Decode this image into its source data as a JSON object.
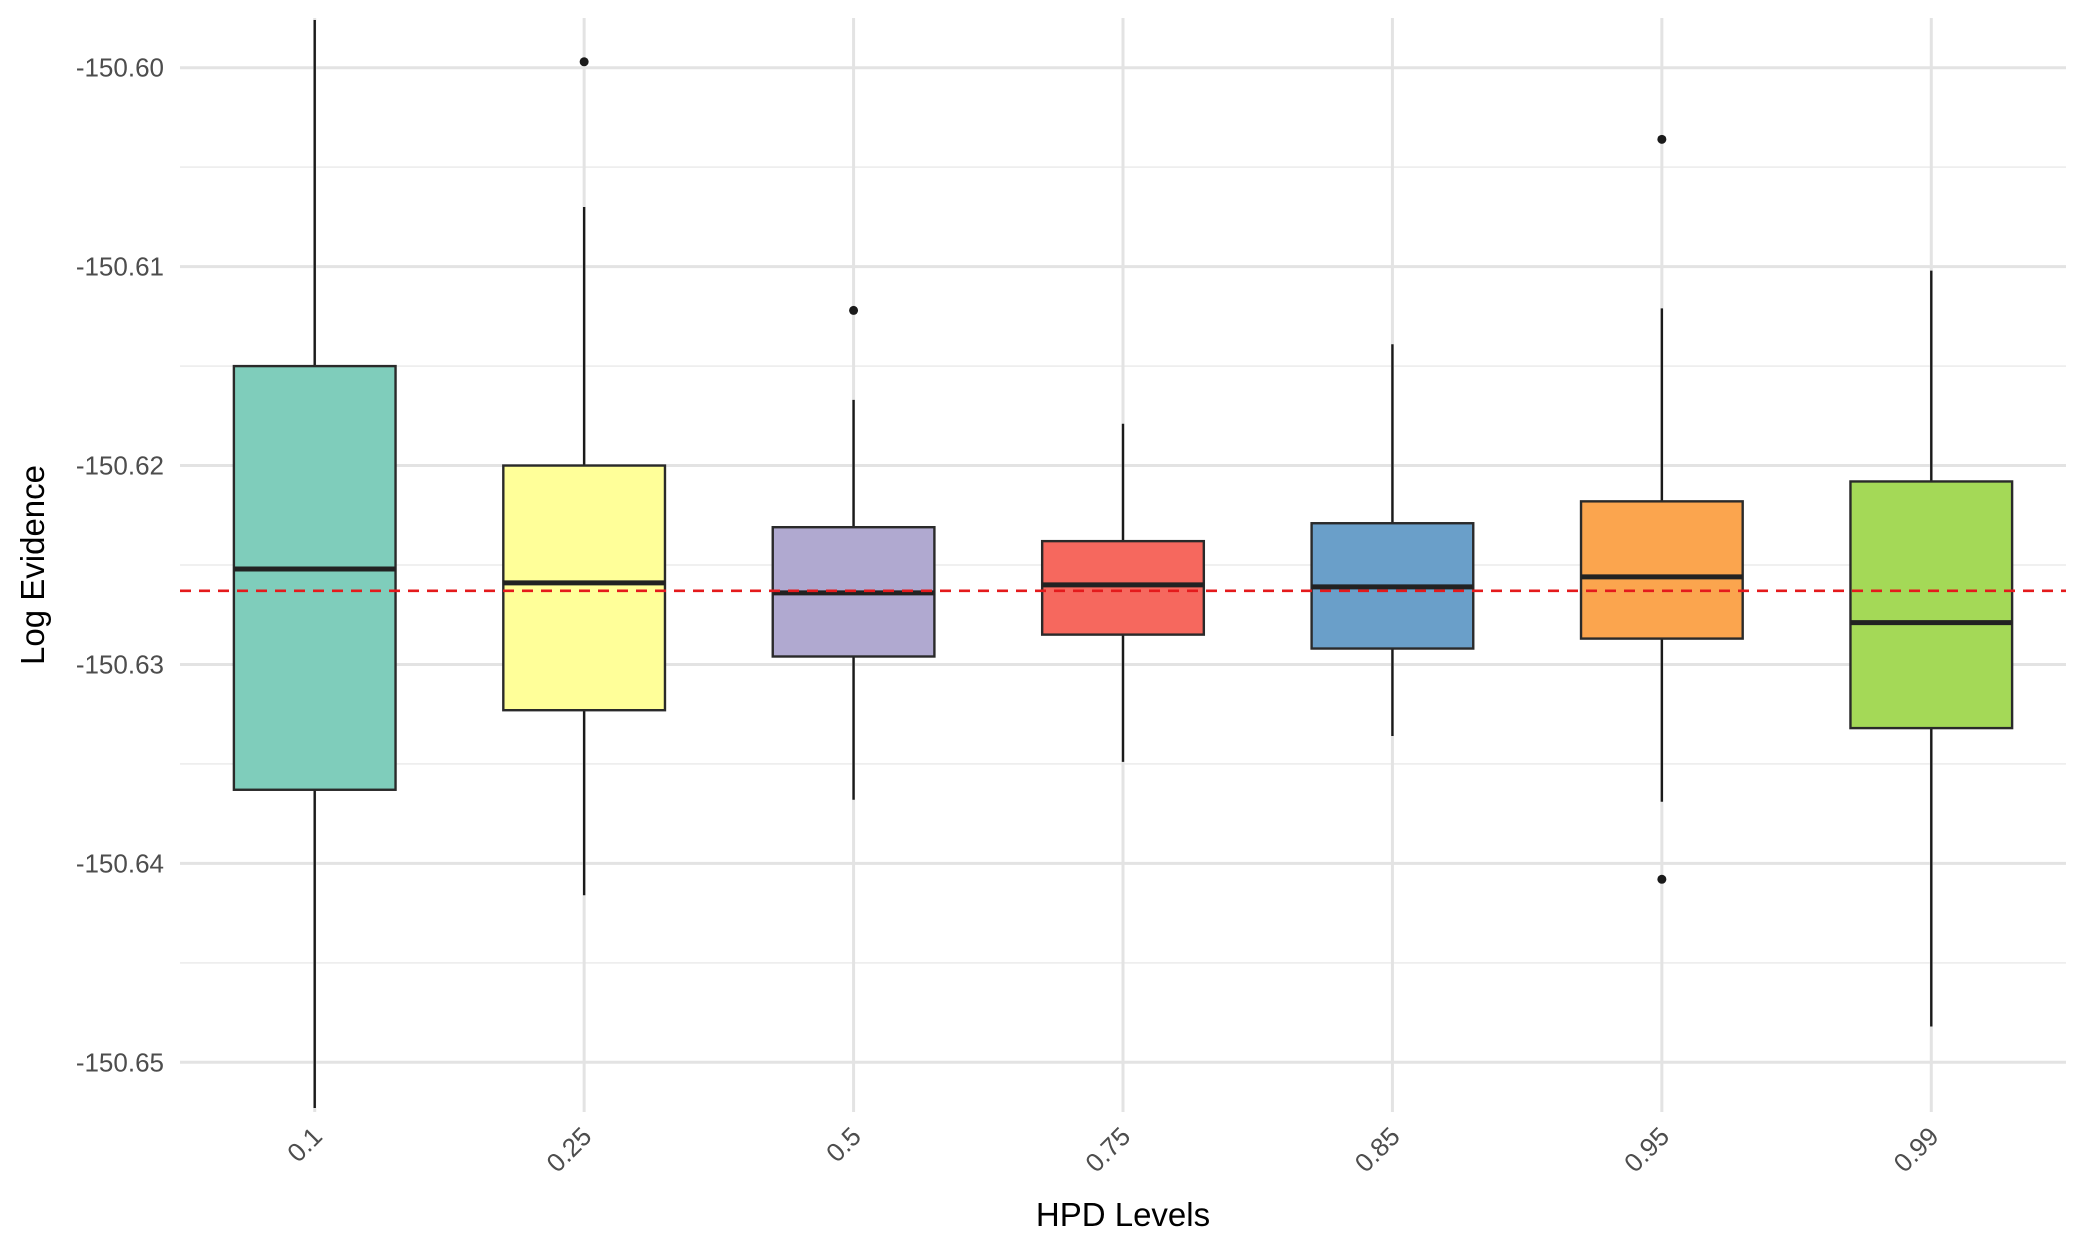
{
  "chart_data": {
    "type": "boxplot",
    "title": "",
    "xlabel": "HPD Levels",
    "ylabel": "Log Evidence",
    "ylim": [
      -150.6525,
      -150.5975
    ],
    "y_ticks": [
      -150.6,
      -150.61,
      -150.62,
      -150.63,
      -150.64,
      -150.65
    ],
    "y_tick_labels": [
      "-150.60",
      "-150.61",
      "-150.62",
      "-150.63",
      "-150.64",
      "-150.65"
    ],
    "grid": true,
    "legend": "none",
    "reference_line": {
      "y": -150.6263,
      "color": "#e41a1c",
      "style": "dashed"
    },
    "categories": [
      "0.1",
      "0.25",
      "0.5",
      "0.75",
      "0.85",
      "0.95",
      "0.99"
    ],
    "boxes": [
      {
        "category": "0.1",
        "whisker_low": -150.6523,
        "q1": -150.6363,
        "median": -150.6252,
        "q3": -150.615,
        "whisker_high": -150.5976,
        "outliers": [],
        "color": "#7fcdbb"
      },
      {
        "category": "0.25",
        "whisker_low": -150.6416,
        "q1": -150.6323,
        "median": -150.6259,
        "q3": -150.62,
        "whisker_high": -150.607,
        "outliers": [
          -150.5997
        ],
        "color": "#ffff99"
      },
      {
        "category": "0.5",
        "whisker_low": -150.6368,
        "q1": -150.6296,
        "median": -150.6264,
        "q3": -150.6231,
        "whisker_high": -150.6167,
        "outliers": [
          -150.6122
        ],
        "color": "#b0a9d0"
      },
      {
        "category": "0.75",
        "whisker_low": -150.6349,
        "q1": -150.6285,
        "median": -150.626,
        "q3": -150.6238,
        "whisker_high": -150.6179,
        "outliers": [],
        "color": "#f6685e"
      },
      {
        "category": "0.85",
        "whisker_low": -150.6336,
        "q1": -150.6292,
        "median": -150.6261,
        "q3": -150.6229,
        "whisker_high": -150.6139,
        "outliers": [],
        "color": "#6a9fc9"
      },
      {
        "category": "0.95",
        "whisker_low": -150.6369,
        "q1": -150.6287,
        "median": -150.6256,
        "q3": -150.6218,
        "whisker_high": -150.6121,
        "outliers": [
          -150.6036,
          -150.6408
        ],
        "color": "#fba54e"
      },
      {
        "category": "0.99",
        "whisker_low": -150.6482,
        "q1": -150.6332,
        "median": -150.6279,
        "q3": -150.6208,
        "whisker_high": -150.6102,
        "outliers": [],
        "color": "#a4d957"
      }
    ]
  }
}
